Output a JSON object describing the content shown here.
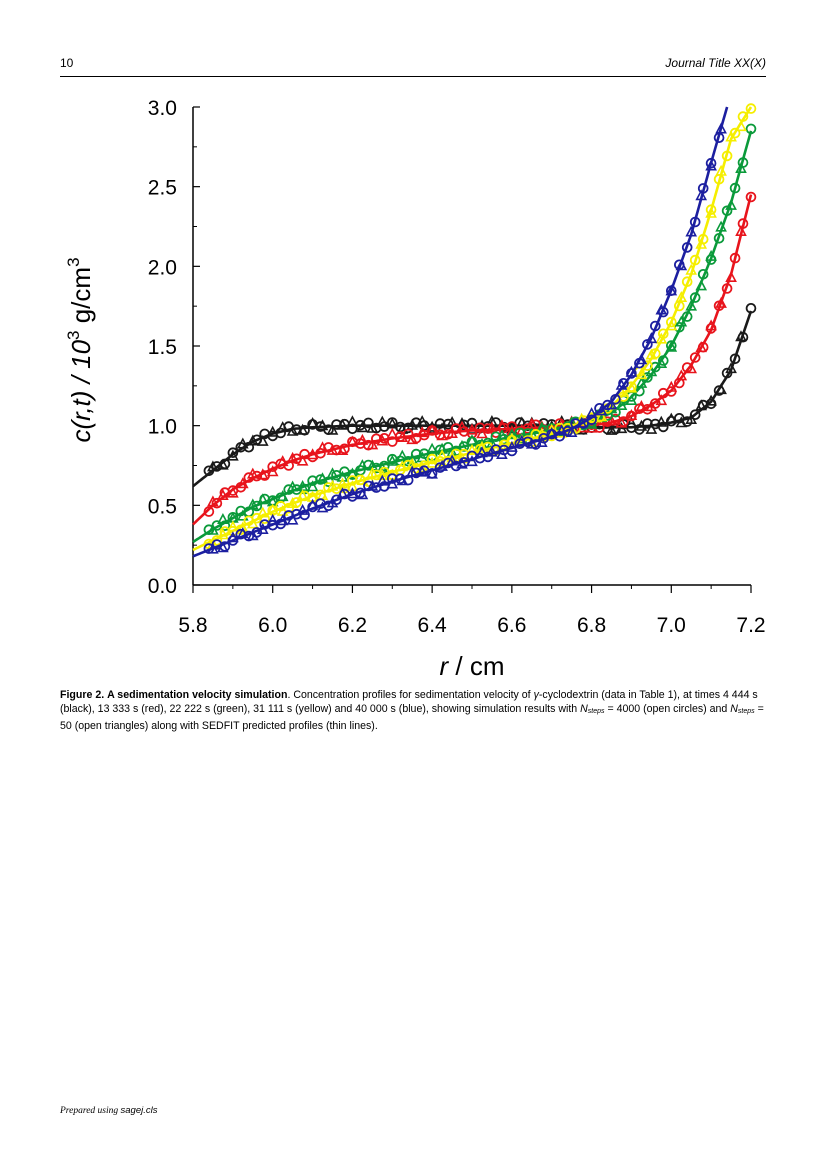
{
  "header": {
    "page_number": "10",
    "journal_title": "Journal Title XX(X)"
  },
  "chart_data": {
    "type": "scatter",
    "xlabel": "r / cm",
    "ylabel": "c(r,t) / 10^3 g/cm^3",
    "xlim": [
      5.8,
      7.2
    ],
    "ylim": [
      0.0,
      3.0
    ],
    "x_ticks": [
      "5.8",
      "6.0",
      "6.2",
      "6.4",
      "6.6",
      "6.8",
      "7.0",
      "7.2"
    ],
    "y_ticks": [
      "0.0",
      "0.5",
      "1.0",
      "1.5",
      "2.0",
      "2.5",
      "3.0"
    ],
    "grid": false,
    "legend": "none",
    "series": [
      {
        "time_s": 4444,
        "color": "#1a1a1a",
        "x": [
          5.8,
          5.85,
          5.9,
          5.95,
          6.0,
          6.05,
          6.1,
          6.2,
          6.3,
          6.4,
          6.5,
          6.6,
          6.7,
          6.75,
          6.8,
          6.85,
          6.9,
          6.95,
          7.0,
          7.05,
          7.1,
          7.15,
          7.2
        ],
        "y": [
          0.62,
          0.72,
          0.82,
          0.9,
          0.95,
          0.98,
          0.99,
          1.0,
          1.0,
          1.0,
          1.0,
          1.0,
          1.0,
          1.0,
          0.99,
          0.99,
          0.99,
          1.0,
          1.02,
          1.05,
          1.15,
          1.35,
          1.72
        ]
      },
      {
        "time_s": 13333,
        "color": "#e8141c",
        "x": [
          5.8,
          5.85,
          5.9,
          5.95,
          6.0,
          6.05,
          6.1,
          6.2,
          6.3,
          6.4,
          6.5,
          6.6,
          6.7,
          6.75,
          6.8,
          6.85,
          6.9,
          6.95,
          7.0,
          7.05,
          7.1,
          7.15,
          7.2
        ],
        "y": [
          0.38,
          0.5,
          0.6,
          0.67,
          0.73,
          0.78,
          0.82,
          0.88,
          0.92,
          0.95,
          0.97,
          0.98,
          0.99,
          1.0,
          1.0,
          1.02,
          1.06,
          1.13,
          1.22,
          1.38,
          1.6,
          1.95,
          2.45
        ]
      },
      {
        "time_s": 22222,
        "color": "#0a9a3a",
        "x": [
          5.8,
          5.85,
          5.9,
          5.95,
          6.0,
          6.05,
          6.1,
          6.2,
          6.3,
          6.4,
          6.5,
          6.6,
          6.7,
          6.75,
          6.8,
          6.85,
          6.9,
          6.95,
          7.0,
          7.05,
          7.1,
          7.15,
          7.2
        ],
        "y": [
          0.27,
          0.35,
          0.42,
          0.49,
          0.54,
          0.59,
          0.64,
          0.71,
          0.77,
          0.83,
          0.88,
          0.93,
          0.97,
          1.0,
          1.03,
          1.08,
          1.18,
          1.32,
          1.5,
          1.75,
          2.05,
          2.4,
          2.85
        ]
      },
      {
        "time_s": 31111,
        "color": "#f5ee00",
        "x": [
          5.8,
          5.85,
          5.9,
          5.95,
          6.0,
          6.05,
          6.1,
          6.2,
          6.3,
          6.4,
          6.5,
          6.6,
          6.7,
          6.75,
          6.8,
          6.85,
          6.9,
          6.95,
          7.0,
          7.05,
          7.1,
          7.15,
          7.2
        ],
        "y": [
          0.22,
          0.28,
          0.34,
          0.4,
          0.46,
          0.51,
          0.56,
          0.64,
          0.71,
          0.77,
          0.83,
          0.89,
          0.95,
          0.99,
          1.04,
          1.12,
          1.25,
          1.42,
          1.65,
          1.95,
          2.35,
          2.8,
          3.0
        ]
      },
      {
        "time_s": 40000,
        "color": "#1c1fa0",
        "x": [
          5.8,
          5.85,
          5.9,
          5.95,
          6.0,
          6.05,
          6.1,
          6.2,
          6.3,
          6.4,
          6.5,
          6.6,
          6.7,
          6.75,
          6.8,
          6.85,
          6.9,
          6.95,
          7.0,
          7.05,
          7.1,
          7.14
        ],
        "y": [
          0.18,
          0.23,
          0.28,
          0.33,
          0.38,
          0.43,
          0.48,
          0.57,
          0.65,
          0.72,
          0.79,
          0.86,
          0.93,
          0.98,
          1.05,
          1.15,
          1.32,
          1.55,
          1.85,
          2.2,
          2.65,
          3.0
        ]
      }
    ]
  },
  "caption": {
    "label": "Figure 2.",
    "title": "A sedimentation velocity simulation",
    "text_1": ". Concentration profiles for sedimentation velocity of ",
    "gamma": "γ",
    "text_2": "-cyclodextrin (data in Table 1), at times 4 444 s (black), 13 333 s (red), 22 222 s (green), 31 111 s (yellow) and 40 000 s (blue), showing simulation results with ",
    "n_symbol": "N",
    "steps_sub": "steps",
    "text_3": " = 4000 (open circles) and ",
    "text_4": " = 50 (open triangles) along with SEDFIT predicted profiles (thin lines)."
  },
  "footer": {
    "prepared": "Prepared using ",
    "cls": "sagej.cls"
  }
}
